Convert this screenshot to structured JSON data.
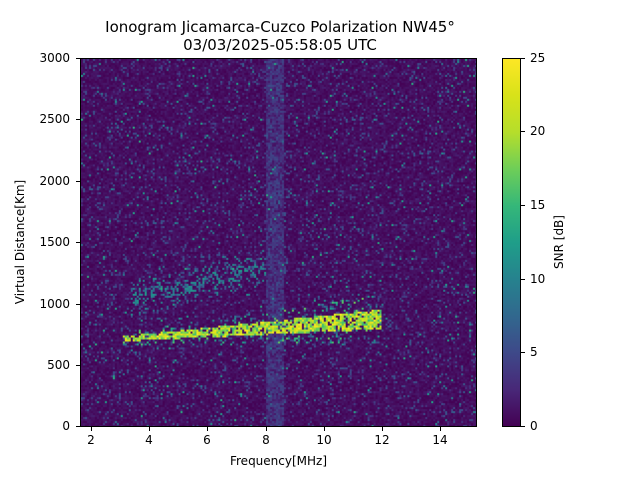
{
  "figure": {
    "title_line1": "Ionogram Jicamarca-Cuzco Polarization NW45°",
    "title_line2": "03/03/2025-05:58:05 UTC"
  },
  "axes": {
    "xlabel": "Frequency[MHz]",
    "ylabel": "Virtual Distance[Km]",
    "x_ticks": [
      "2",
      "4",
      "6",
      "8",
      "10",
      "12",
      "14"
    ],
    "y_ticks": [
      "0",
      "500",
      "1000",
      "1500",
      "2000",
      "2500",
      "3000"
    ]
  },
  "colorbar": {
    "label": "SNR [dB]",
    "ticks": [
      "0",
      "5",
      "10",
      "15",
      "20",
      "25"
    ],
    "colormap": "viridis"
  },
  "chart_data": {
    "type": "heatmap",
    "title": "Ionogram Jicamarca-Cuzco Polarization NW45° 03/03/2025-05:58:05 UTC",
    "xlabel": "Frequency[MHz]",
    "ylabel": "Virtual Distance[Km]",
    "xlim": [
      1.6,
      15.3
    ],
    "ylim": [
      0,
      3000
    ],
    "x_ticks": [
      2,
      4,
      6,
      8,
      10,
      12,
      14
    ],
    "y_ticks": [
      0,
      500,
      1000,
      1500,
      2000,
      2500,
      3000
    ],
    "colorbar": {
      "label": "SNR [dB]",
      "range": [
        0,
        25
      ],
      "ticks": [
        0,
        5,
        10,
        15,
        20,
        25
      ],
      "colormap": "viridis"
    },
    "grid": false,
    "features": [
      {
        "name": "F-layer first-hop trace",
        "freq_start_mhz": 3.0,
        "freq_end_mhz": 12.0,
        "height_start_km": 720,
        "height_end_km": 880,
        "snr_db": 25
      },
      {
        "name": "F-layer second-hop trace",
        "freq_start_mhz": 3.3,
        "freq_end_mhz": 8.0,
        "height_start_km": 1050,
        "height_end_km": 1300,
        "snr_db": 12
      },
      {
        "name": "Interference band",
        "freq_start_mhz": 8.0,
        "freq_end_mhz": 8.6,
        "height_start_km": 0,
        "height_end_km": 3000,
        "snr_db": 4
      },
      {
        "name": "Background noise",
        "snr_db": 1
      }
    ]
  }
}
